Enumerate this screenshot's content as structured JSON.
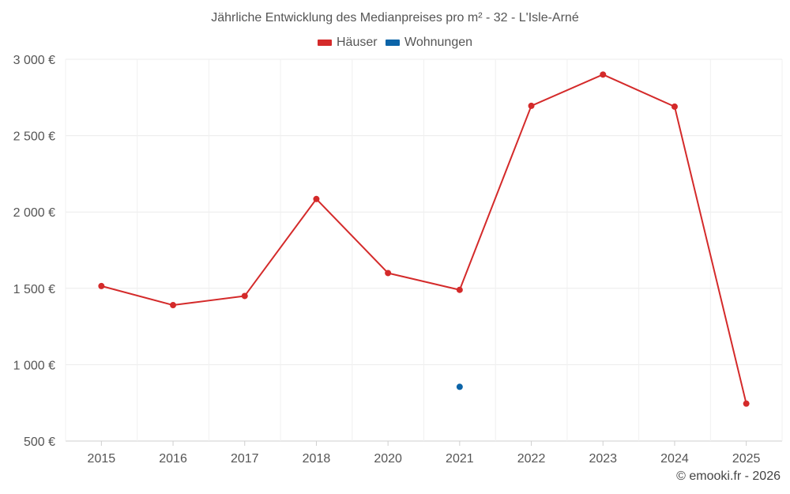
{
  "chart_data": {
    "type": "line",
    "title": "Jährliche Entwicklung des Medianpreises pro m² - 32 - L'Isle-Arné",
    "categories": [
      "2015",
      "2016",
      "2017",
      "2018",
      "2020",
      "2021",
      "2022",
      "2023",
      "2024",
      "2025"
    ],
    "y_ticks": [
      "500 €",
      "1 000 €",
      "1 500 €",
      "2 000 €",
      "2 500 €",
      "3 000 €"
    ],
    "ylim": [
      500,
      3000
    ],
    "xlabel": "",
    "ylabel": "",
    "grid": true,
    "legend_position": "top-center",
    "series": [
      {
        "name": "Häuser",
        "color": "#d42a2a",
        "values": [
          1515,
          1390,
          1450,
          2085,
          1600,
          1490,
          2695,
          2900,
          2690,
          745
        ]
      },
      {
        "name": "Wohnungen",
        "color": "#0b64a8",
        "values": [
          null,
          null,
          null,
          null,
          null,
          855,
          null,
          null,
          null,
          null
        ]
      }
    ]
  },
  "credit": "© emooki.fr - 2026"
}
